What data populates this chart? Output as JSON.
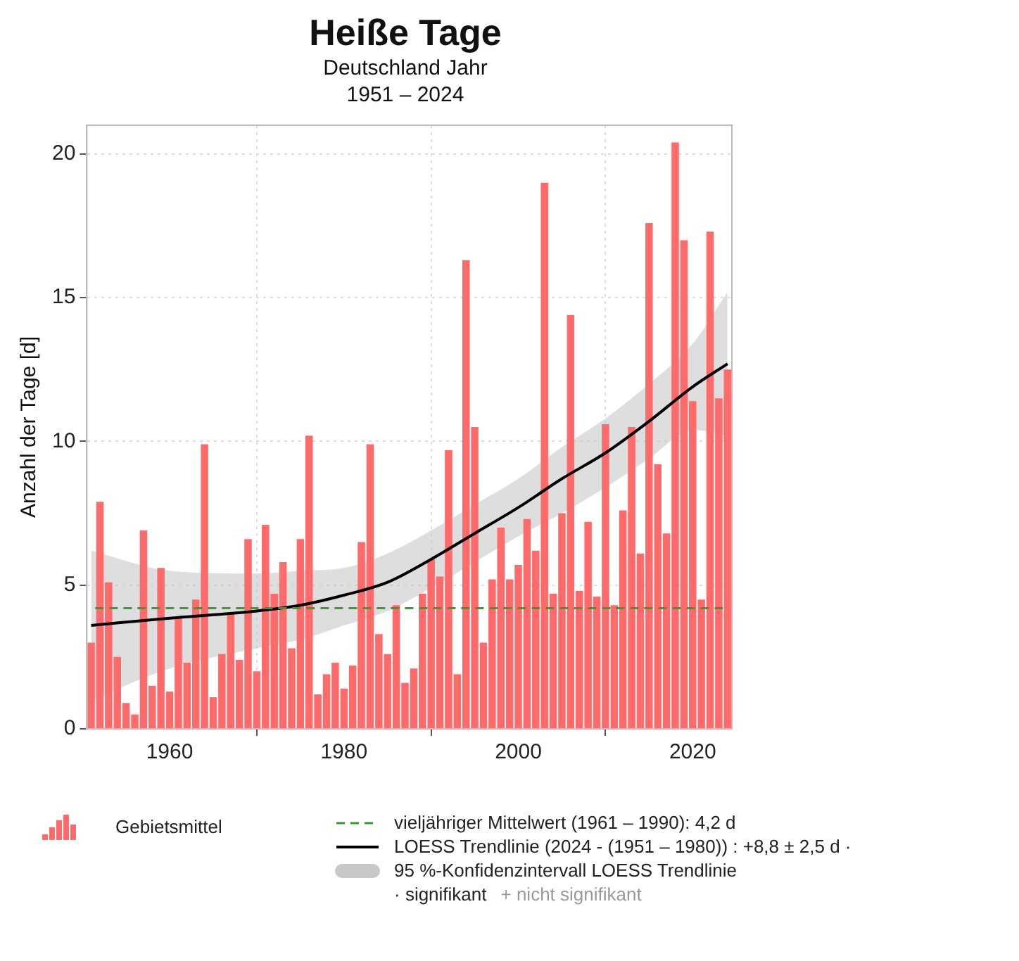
{
  "chart_data": {
    "type": "bar",
    "title": "Heiße Tage",
    "subtitle": "Deutschland Jahr\n1951 – 2024",
    "ylabel": "Anzahl der Tage [d]",
    "x": [
      1951,
      1952,
      1953,
      1954,
      1955,
      1956,
      1957,
      1958,
      1959,
      1960,
      1961,
      1962,
      1963,
      1964,
      1965,
      1966,
      1967,
      1968,
      1969,
      1970,
      1971,
      1972,
      1973,
      1974,
      1975,
      1976,
      1977,
      1978,
      1979,
      1980,
      1981,
      1982,
      1983,
      1984,
      1985,
      1986,
      1987,
      1988,
      1989,
      1990,
      1991,
      1992,
      1993,
      1994,
      1995,
      1996,
      1997,
      1998,
      1999,
      2000,
      2001,
      2002,
      2003,
      2004,
      2005,
      2006,
      2007,
      2008,
      2009,
      2010,
      2011,
      2012,
      2013,
      2014,
      2015,
      2016,
      2017,
      2018,
      2019,
      2020,
      2021,
      2022,
      2023,
      2024
    ],
    "xlim": [
      1950.5,
      2024.5
    ],
    "xticks": [
      1960,
      1980,
      2000,
      2020
    ],
    "ylim": [
      0,
      21
    ],
    "yticks": [
      0,
      5,
      10,
      15,
      20
    ],
    "grid": true,
    "legend": "bottom",
    "series": [
      {
        "name": "Gebietsmittel",
        "color": "#ff6b6b",
        "values": [
          3.0,
          7.9,
          5.1,
          2.5,
          0.9,
          0.5,
          6.9,
          1.5,
          5.6,
          1.3,
          3.9,
          2.3,
          4.5,
          9.9,
          1.1,
          2.6,
          4.0,
          2.4,
          6.6,
          2.0,
          7.1,
          4.7,
          5.8,
          2.8,
          6.6,
          10.2,
          1.2,
          1.9,
          2.3,
          1.4,
          2.2,
          6.5,
          9.9,
          3.3,
          2.6,
          4.3,
          1.6,
          2.1,
          4.7,
          5.9,
          5.3,
          9.7,
          1.9,
          16.3,
          10.5,
          3.0,
          5.2,
          7.0,
          5.2,
          5.7,
          7.3,
          6.2,
          19.0,
          4.7,
          7.5,
          14.4,
          4.8,
          7.2,
          4.6,
          10.6,
          4.3,
          7.6,
          10.5,
          6.1,
          17.6,
          9.2,
          6.8,
          20.4,
          17.0,
          11.4,
          4.5,
          17.3,
          11.5,
          12.5
        ]
      },
      {
        "type": "line",
        "name": "LOESS Trendlinie (2024 - (1951 – 1980)) : +8,8 ± 2,5 d ·",
        "color": "#000000",
        "marker": "none",
        "line_style": "solid",
        "x": [
          1951,
          1960,
          1970,
          1975,
          1980,
          1985,
          1990,
          1995,
          2000,
          2005,
          2010,
          2015,
          2020,
          2024
        ],
        "values": [
          3.6,
          3.85,
          4.1,
          4.3,
          4.65,
          5.1,
          5.9,
          6.8,
          7.7,
          8.7,
          9.6,
          10.7,
          11.9,
          12.7
        ],
        "lower": [
          1.0,
          2.1,
          2.8,
          3.1,
          3.6,
          4.1,
          4.9,
          5.8,
          6.7,
          7.5,
          8.4,
          9.4,
          10.4,
          10.2
        ],
        "upper": [
          6.2,
          5.5,
          5.4,
          5.5,
          5.6,
          6.1,
          6.9,
          7.8,
          8.7,
          9.8,
          10.8,
          12.0,
          13.4,
          15.2
        ]
      }
    ],
    "ref_lines": [
      {
        "axis": "y",
        "value": 4.2,
        "label": "vieljähriger Mittelwert (1961 – 1990): 4,2 d",
        "color": "#33a02c",
        "line_style": "dashed"
      }
    ],
    "annotations": [
      "95 %-Konfidenzintervall LOESS Trendlinie",
      "· signifikant",
      "+ nicht signifikant"
    ]
  }
}
